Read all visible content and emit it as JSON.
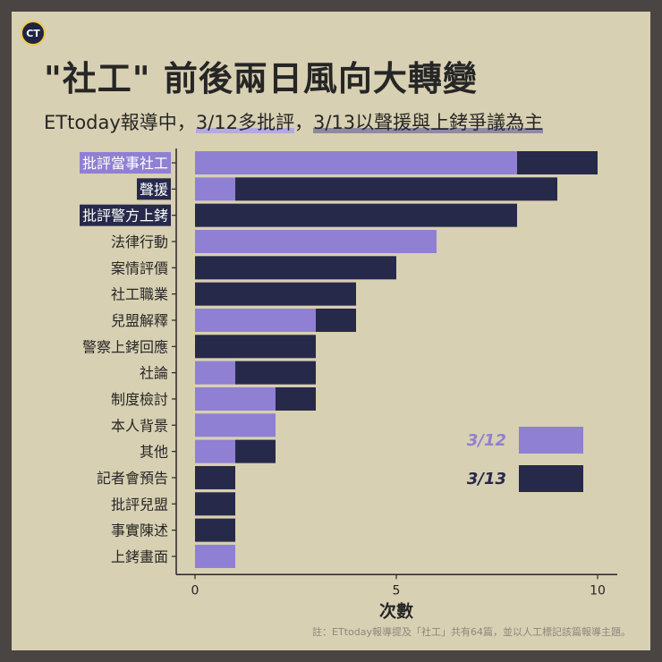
{
  "logo_text": "CT",
  "title": "\"社工\" 前後兩日風向大轉變",
  "subtitle": {
    "prefix": "ETtoday報導中，",
    "part1": "3/12多批評",
    "sep": "，",
    "part2": "3/13以聲援與上銬爭議為主"
  },
  "footnote": "註：ETtoday報導提及「社工」共有64篇，並以人工標記該篇報導主題。",
  "colors": {
    "s312": "#8f80d3",
    "s313": "#26294a",
    "text": "#262626",
    "background": "#d8d0b2"
  },
  "chart_data": {
    "type": "bar",
    "orientation": "horizontal",
    "stacked": true,
    "categories": [
      "批評當事社工",
      "聲援",
      "批評警方上銬",
      "法律行動",
      "案情評價",
      "社工職業",
      "兒盟解釋",
      "警察上銬回應",
      "社論",
      "制度檢討",
      "本人背景",
      "其他",
      "記者會預告",
      "批評兒盟",
      "事實陳述",
      "上銬畫面"
    ],
    "highlighted_categories": {
      "批評當事社工": "3/12",
      "聲援": "3/13",
      "批評警方上銬": "3/13"
    },
    "series": [
      {
        "name": "3/12",
        "values": [
          8,
          1,
          0,
          6,
          0,
          0,
          3,
          0,
          1,
          2,
          2,
          1,
          0,
          0,
          0,
          1
        ]
      },
      {
        "name": "3/13",
        "values": [
          2,
          8,
          8,
          0,
          5,
          4,
          1,
          3,
          2,
          1,
          0,
          1,
          1,
          1,
          1,
          0
        ]
      }
    ],
    "xlabel": "次數",
    "xlim": [
      0,
      10
    ],
    "xticks": [
      0,
      5,
      10
    ],
    "legend_position": "bottom-right"
  }
}
